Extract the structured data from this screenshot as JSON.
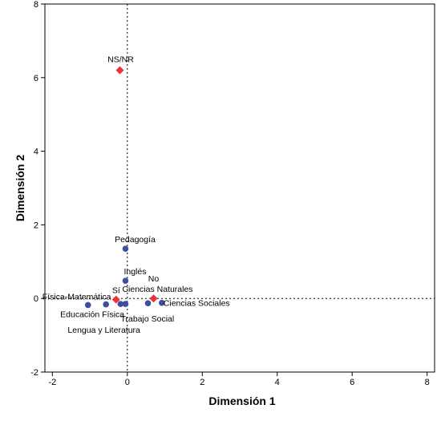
{
  "chart_data": {
    "type": "scatter",
    "title": "",
    "xlabel": "Dimensión 1",
    "ylabel": "Dimensión 2",
    "xlim": [
      -2.2,
      8.2
    ],
    "ylim": [
      -2,
      8
    ],
    "xticks": [
      -2,
      0,
      2,
      4,
      6,
      8
    ],
    "yticks": [
      -2,
      0,
      2,
      4,
      6,
      8
    ],
    "grid": false,
    "reference_lines": {
      "x": 0,
      "y": 0
    },
    "series": [
      {
        "marker": "diamond",
        "color": "#e8333b",
        "points": [
          {
            "label": "NS/NR",
            "x": -0.2,
            "y": 6.2
          },
          {
            "label": "No",
            "x": 0.7,
            "y": 0.0
          },
          {
            "label": "Sí",
            "x": -0.3,
            "y": -0.03
          }
        ]
      },
      {
        "marker": "circle",
        "color": "#3b4f9e",
        "points": [
          {
            "label": "Pedagogía",
            "x": -0.05,
            "y": 1.35
          },
          {
            "label": "Inglés",
            "x": -0.05,
            "y": 0.48
          },
          {
            "label": "Ciencias Naturales",
            "x": 0.55,
            "y": -0.13
          },
          {
            "label": "Ciencias Sociales",
            "x": 0.92,
            "y": -0.12
          },
          {
            "label": "Física-Matemática",
            "x": -1.05,
            "y": -0.18
          },
          {
            "label": "Educación Física",
            "x": -0.57,
            "y": -0.16
          },
          {
            "label": "Trabajo Social",
            "x": -0.05,
            "y": -0.15
          },
          {
            "label": "Lengua y Literatura",
            "x": -0.18,
            "y": -0.15
          }
        ]
      }
    ]
  }
}
